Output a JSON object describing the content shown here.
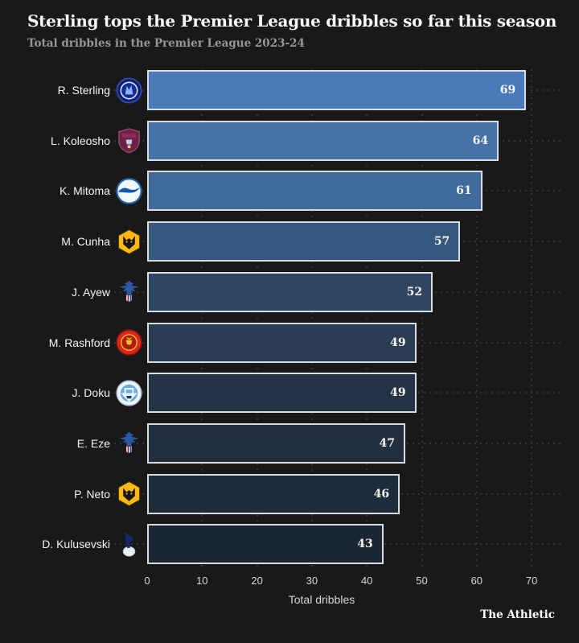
{
  "header": {
    "title": "Sterling tops the Premier League dribbles so far this season",
    "subtitle": "Total dribbles in the Premier League 2023-24"
  },
  "footer": {
    "brand": "The Athletic"
  },
  "colors": {
    "background": "#191919",
    "grid_dot": "#333333",
    "title_text": "#f7f7f7",
    "subtitle_text": "#979797",
    "player_label_text": "#f2f2f2",
    "tick_text": "#d6d6d6",
    "bar_border": "#d9dde2",
    "value_text": "#f5f2ec",
    "brand_text": "#ffffff"
  },
  "chart_data": {
    "type": "bar",
    "orientation": "horizontal",
    "title": "Sterling tops the Premier League dribbles so far this season",
    "subtitle": "Total dribbles in the Premier League 2023-24",
    "xlabel": "Total dribbles",
    "ylabel": "",
    "xlim": [
      0,
      75
    ],
    "xticks": [
      0,
      10,
      20,
      30,
      40,
      50,
      60,
      70
    ],
    "grid": "dotted",
    "legend": "none",
    "categories": [
      "R. Sterling",
      "L. Koleosho",
      "K. Mitoma",
      "M. Cunha",
      "J. Ayew",
      "M. Rashford",
      "J. Doku",
      "E. Eze",
      "P. Neto",
      "D. Kulusevski"
    ],
    "club_badges": [
      "chelsea",
      "burnley",
      "brighton",
      "wolves",
      "crystal-palace",
      "man-united",
      "man-city",
      "crystal-palace",
      "wolves",
      "tottenham"
    ],
    "values": [
      69,
      64,
      61,
      57,
      52,
      49,
      49,
      47,
      46,
      43
    ],
    "bar_colors": [
      "#4a7ab8",
      "#4472a9",
      "#3f6a9a",
      "#36577e",
      "#2e4563",
      "#2a3c54",
      "#263346",
      "#222f40",
      "#1e2b3a",
      "#1b2634"
    ]
  }
}
